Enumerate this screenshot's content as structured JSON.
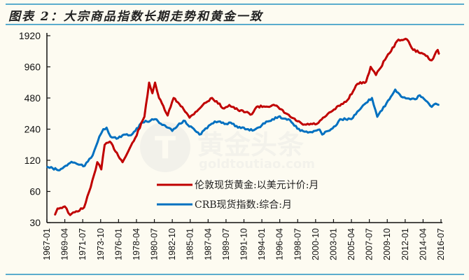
{
  "title": "图表 2：大宗商品指数长期走势和黄金一致",
  "watermark": {
    "text": "黄金头条",
    "subtext": "goldtoutiao.com"
  },
  "colors": {
    "gold": "#c00000",
    "crb": "#0070c0",
    "rule": "#5aaccd",
    "background": "#fdfbf1"
  },
  "chart_data": {
    "type": "line",
    "title": "图表 2：大宗商品指数长期走势和黄金一致",
    "y_scale": "log2",
    "ylim": [
      30,
      1920
    ],
    "y_ticks": [
      "1920",
      "960",
      "480",
      "240",
      "120",
      "60",
      "30"
    ],
    "x_ticks": [
      "1967-01",
      "1969-04",
      "1971-07",
      "1973-10",
      "1976-01",
      "1978-04",
      "1980-07",
      "1982-10",
      "1985-01",
      "1987-04",
      "1989-07",
      "1991-10",
      "1994-01",
      "1996-04",
      "1998-07",
      "2000-10",
      "2003-01",
      "2005-04",
      "2007-07",
      "2009-10",
      "2012-01",
      "2014-04",
      "2016-07"
    ],
    "xlim": [
      "1967-01",
      "2016-07"
    ],
    "grid": false,
    "legend_position": "bottom-center",
    "series": [
      {
        "name": "伦敦现货黄金:以美元计价:月",
        "color": "#c00000",
        "points": [
          [
            "1968-01",
            35.5
          ],
          [
            "1968-05",
            41
          ],
          [
            "1969-04",
            43
          ],
          [
            "1969-12",
            35.5
          ],
          [
            "1971-09",
            42
          ],
          [
            "1972-07",
            66
          ],
          [
            "1973-05",
            115
          ],
          [
            "1973-11",
            98
          ],
          [
            "1974-04",
            169
          ],
          [
            "1974-12",
            182
          ],
          [
            "1976-07",
            115
          ],
          [
            "1978-02",
            197
          ],
          [
            "1979-04",
            316
          ],
          [
            "1979-11",
            676
          ],
          [
            "1980-04",
            534
          ],
          [
            "1980-08",
            676
          ],
          [
            "1981-02",
            480
          ],
          [
            "1982-03",
            325
          ],
          [
            "1982-12",
            480
          ],
          [
            "1984-01",
            394
          ],
          [
            "1984-12",
            310
          ],
          [
            "1986-08",
            411
          ],
          [
            "1987-10",
            480
          ],
          [
            "1989-04",
            380
          ],
          [
            "1989-12",
            411
          ],
          [
            "1991-01",
            367
          ],
          [
            "1992-10",
            335
          ],
          [
            "1993-05",
            394
          ],
          [
            "1995-09",
            406
          ],
          [
            "1997-10",
            310
          ],
          [
            "1999-03",
            265
          ],
          [
            "2000-12",
            270
          ],
          [
            "2002-09",
            352
          ],
          [
            "2004-10",
            458
          ],
          [
            "2006-01",
            658
          ],
          [
            "2007-02",
            688
          ],
          [
            "2007-09",
            960
          ],
          [
            "2008-05",
            800
          ],
          [
            "2009-09",
            1195
          ],
          [
            "2011-03",
            1760
          ],
          [
            "2012-04",
            1760
          ],
          [
            "2013-01",
            1400
          ],
          [
            "2014-06",
            1270
          ],
          [
            "2015-05",
            1110
          ],
          [
            "2016-02",
            1400
          ],
          [
            "2016-04",
            1270
          ]
        ]
      },
      {
        "name": "CRB现货指数:综合:月",
        "color": "#0070c0",
        "points": [
          [
            "1967-01",
            104
          ],
          [
            "1968-08",
            96
          ],
          [
            "1970-02",
            116
          ],
          [
            "1971-01",
            109
          ],
          [
            "1971-10",
            106
          ],
          [
            "1972-10",
            134
          ],
          [
            "1973-08",
            203
          ],
          [
            "1974-02",
            240
          ],
          [
            "1974-07",
            248
          ],
          [
            "1975-01",
            203
          ],
          [
            "1975-10",
            194
          ],
          [
            "1976-07",
            210
          ],
          [
            "1977-08",
            210
          ],
          [
            "1979-01",
            278
          ],
          [
            "1980-01",
            290
          ],
          [
            "1980-08",
            300
          ],
          [
            "1982-10",
            231
          ],
          [
            "1984-03",
            290
          ],
          [
            "1986-03",
            213
          ],
          [
            "1988-02",
            285
          ],
          [
            "1988-10",
            285
          ],
          [
            "1989-07",
            270
          ],
          [
            "1990-02",
            278
          ],
          [
            "1991-01",
            248
          ],
          [
            "1993-01",
            235
          ],
          [
            "1994-10",
            285
          ],
          [
            "1996-02",
            316
          ],
          [
            "1997-05",
            300
          ],
          [
            "1998-11",
            231
          ],
          [
            "2000-03",
            225
          ],
          [
            "2001-04",
            238
          ],
          [
            "2001-08",
            213
          ],
          [
            "2003-04",
            257
          ],
          [
            "2003-11",
            300
          ],
          [
            "2005-04",
            300
          ],
          [
            "2007-02",
            430
          ],
          [
            "2007-11",
            480
          ],
          [
            "2008-07",
            316
          ],
          [
            "2009-09",
            430
          ],
          [
            "2010-10",
            580
          ],
          [
            "2011-07",
            495
          ],
          [
            "2013-04",
            466
          ],
          [
            "2013-11",
            510
          ],
          [
            "2015-05",
            394
          ],
          [
            "2015-11",
            424
          ],
          [
            "2016-04",
            411
          ]
        ]
      }
    ]
  }
}
